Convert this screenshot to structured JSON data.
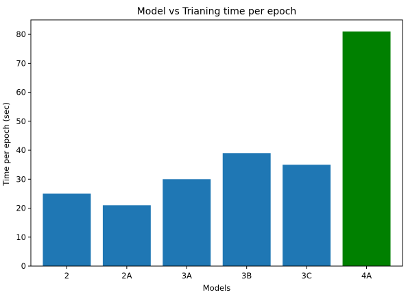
{
  "chart_data": {
    "type": "bar",
    "title": "Model vs Trianing time per epoch",
    "xlabel": "Models",
    "ylabel": "Time per epoch (sec)",
    "categories": [
      "2",
      "2A",
      "3A",
      "3B",
      "3C",
      "4A"
    ],
    "values": [
      25,
      21,
      30,
      39,
      35,
      81
    ],
    "bar_colors": [
      "#1f77b4",
      "#1f77b4",
      "#1f77b4",
      "#1f77b4",
      "#1f77b4",
      "#008000"
    ],
    "ylim": [
      0,
      85
    ],
    "yticks": [
      0,
      10,
      20,
      30,
      40,
      50,
      60,
      70,
      80
    ],
    "grid": false,
    "legend": "none"
  }
}
